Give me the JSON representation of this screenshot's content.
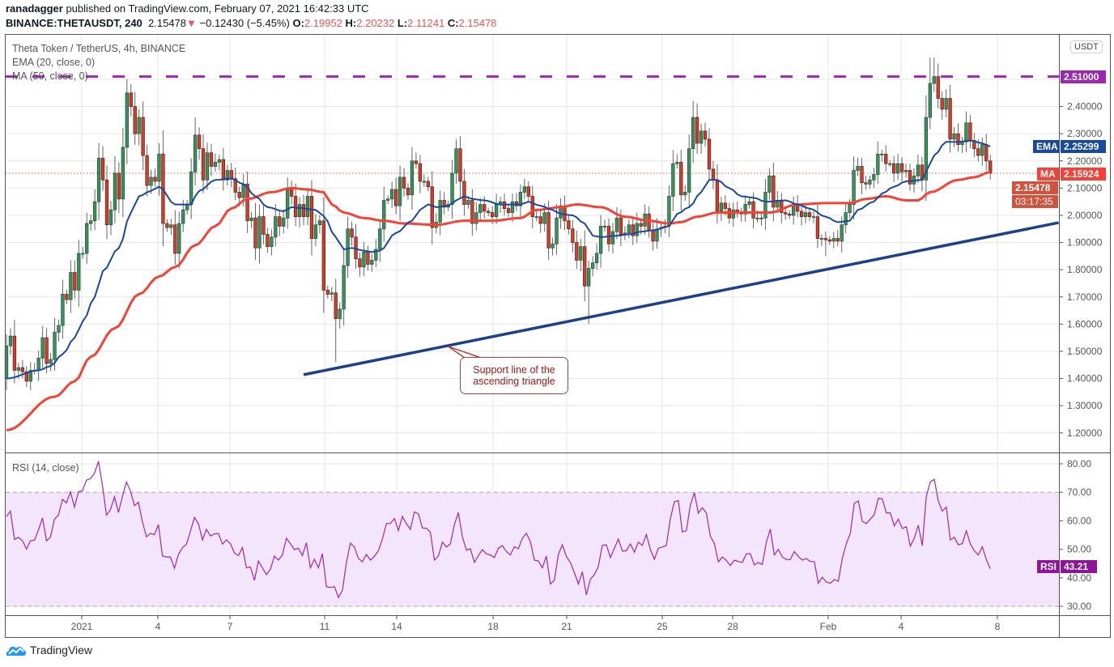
{
  "header": {
    "author": "ranadagger",
    "published_text": "published on TradingView.com, February 07, 2021 16:42:33 UTC",
    "symbol": "BINANCE:THETAUSDT, 240",
    "last": "2.15478",
    "change": "−0.12430 (−5.45%)",
    "o_label": "O:",
    "o": "2.19952",
    "h_label": "H:",
    "h": "2.20232",
    "l_label": "L:",
    "l": "2.11241",
    "c_label": "C:",
    "c": "2.15478",
    "down_arrow": "▼"
  },
  "legend": {
    "title": "Theta Token / TetherUS, 4h, BINANCE",
    "ema": "EMA (20, close, 0)",
    "ma": "MA (50, close, 0)"
  },
  "price_axis": {
    "currency": "USDT",
    "ticks": [
      "2.40000",
      "2.30000",
      "2.20000",
      "2.10000",
      "2.00000",
      "1.90000",
      "1.80000",
      "1.70000",
      "1.60000",
      "1.50000",
      "1.40000",
      "1.30000",
      "1.20000"
    ]
  },
  "badges": {
    "resistance": "2.51000",
    "ema_label": "EMA",
    "ema_value": "2.25299",
    "ma_label": "MA",
    "ma_value": "2.15924",
    "last_price": "2.15478",
    "countdown": "03:17:35",
    "rsi_label": "RSI",
    "rsi_value": "43.21"
  },
  "rsi_panel": {
    "title": "RSI (14, close)",
    "ticks": [
      "80.00",
      "70.00",
      "60.00",
      "50.00",
      "40.00",
      "30.00"
    ]
  },
  "time_axis": [
    "2021",
    "4",
    "7",
    "11",
    "14",
    "18",
    "21",
    "25",
    "28",
    "Feb",
    "4",
    "8"
  ],
  "annotation": {
    "line1": "Support line of the",
    "line2": "ascending triangle"
  },
  "branding": "TradingView",
  "colors": {
    "up": "#3d8f5e",
    "down": "#cf3f2e",
    "ema": "#1848a0",
    "ma": "#f44336",
    "resistance": "#9c27b0",
    "support": "#1e3f8a",
    "rsi": "#9c27b0",
    "rsi_band": "#f3e5fc"
  },
  "chart_data": {
    "type": "candlestick",
    "symbol": "THETAUSDT",
    "interval": "4h",
    "ylim": [
      1.15,
      2.6
    ],
    "rsi_ylim": [
      25,
      83
    ],
    "grid": true,
    "first_open": 1.4,
    "closes": [
      1.52,
      1.556,
      1.43,
      1.44,
      1.425,
      1.39,
      1.43,
      1.43,
      1.475,
      1.55,
      1.455,
      1.47,
      1.57,
      1.595,
      1.71,
      1.69,
      1.79,
      1.725,
      1.86,
      1.86,
      1.97,
      1.98,
      2.05,
      2.21,
      2.13,
      1.965,
      2.02,
      2.155,
      2.06,
      2.25,
      2.45,
      2.4,
      2.3,
      2.36,
      2.22,
      2.11,
      2.14,
      2.125,
      2.225,
      1.97,
      1.955,
      1.965,
      1.86,
      1.97,
      2.02,
      2.04,
      2.16,
      2.295,
      2.245,
      2.13,
      2.23,
      2.18,
      2.195,
      2.205,
      2.13,
      2.165,
      2.135,
      2.085,
      2.065,
      2.115,
      1.98,
      1.99,
      1.88,
      1.995,
      1.93,
      1.885,
      1.92,
      1.995,
      1.96,
      1.99,
      2.1,
      2.07,
      1.995,
      2.04,
      1.995,
      2.07,
      1.915,
      1.965,
      1.98,
      1.725,
      1.71,
      1.715,
      1.62,
      1.655,
      1.815,
      1.95,
      1.92,
      1.84,
      1.81,
      1.865,
      1.82,
      1.835,
      1.875,
      1.95,
      2.055,
      2.06,
      2.095,
      2.035,
      2.14,
      2.1,
      2.075,
      2.2,
      2.19,
      2.125,
      2.125,
      2.105,
      1.955,
      1.975,
      2.055,
      2.03,
      2.04,
      2.155,
      2.245,
      2.125,
      2.04,
      2.055,
      1.97,
      2.01,
      2.04,
      2.015,
      2.01,
      1.995,
      2.04,
      2.05,
      2.025,
      2.01,
      2.05,
      2.035,
      2.085,
      2.105,
      2.07,
      1.995,
      1.995,
      1.97,
      2.01,
      1.88,
      1.895,
      1.99,
      2.035,
      1.98,
      1.95,
      1.9,
      1.835,
      1.885,
      1.74,
      1.805,
      1.825,
      1.86,
      1.96,
      1.96,
      1.895,
      1.94,
      1.99,
      1.93,
      1.935,
      1.965,
      1.925,
      1.97,
      1.96,
      2.005,
      1.945,
      1.905,
      1.95,
      1.955,
      1.96,
      2.07,
      2.19,
      2.195,
      2.075,
      2.085,
      2.245,
      2.36,
      2.265,
      2.31,
      2.28,
      2.17,
      2.13,
      2.015,
      2.045,
      2.025,
      1.99,
      2.02,
      2.01,
      2.005,
      2.04,
      2.05,
      1.99,
      1.99,
      1.99,
      2.085,
      2.145,
      2.03,
      2.055,
      2.01,
      2.005,
      2.0,
      2.04,
      2.015,
      1.995,
      2.01,
      1.995,
      1.995,
      1.915,
      1.915,
      1.91,
      1.905,
      1.915,
      1.905,
      1.965,
      2.01,
      2.04,
      2.165,
      2.18,
      2.12,
      2.115,
      2.13,
      2.15,
      2.225,
      2.225,
      2.19,
      2.19,
      2.155,
      2.19,
      2.16,
      2.165,
      2.115,
      2.145,
      2.185,
      2.13,
      2.36,
      2.485,
      2.51,
      2.43,
      2.39,
      2.43,
      2.28,
      2.3,
      2.26,
      2.27,
      2.34,
      2.275,
      2.245,
      2.22,
      2.26,
      2.2,
      2.15478
    ],
    "notable_wicks": [
      {
        "bar": 30,
        "high": 2.5
      },
      {
        "bar": 47,
        "high": 2.36
      },
      {
        "bar": 82,
        "low": 1.46
      },
      {
        "bar": 112,
        "high": 2.28
      },
      {
        "bar": 145,
        "low": 1.6
      },
      {
        "bar": 171,
        "high": 2.42
      },
      {
        "bar": 204,
        "low": 1.85
      },
      {
        "bar": 230,
        "high": 2.58
      },
      {
        "bar": 231,
        "high": 2.58
      }
    ],
    "ema20": [
      [
        0,
        1.4
      ],
      [
        8,
        1.43
      ],
      [
        11,
        1.446
      ],
      [
        14,
        1.49
      ],
      [
        17,
        1.55
      ],
      [
        19,
        1.61
      ],
      [
        22,
        1.7
      ],
      [
        24,
        1.795
      ],
      [
        28,
        1.88
      ],
      [
        31,
        2.01
      ],
      [
        33,
        2.07
      ],
      [
        36,
        2.09
      ],
      [
        38,
        2.105
      ],
      [
        42,
        2.04
      ],
      [
        46,
        2.04
      ],
      [
        47,
        2.07
      ],
      [
        48,
        2.09
      ],
      [
        52,
        2.13
      ],
      [
        56,
        2.135
      ],
      [
        59,
        2.115
      ],
      [
        62,
        2.07
      ],
      [
        65,
        2.03
      ],
      [
        69,
        2.015
      ],
      [
        71,
        2.03
      ],
      [
        73,
        2.027
      ],
      [
        77,
        2.02
      ],
      [
        79,
        1.997
      ],
      [
        82,
        1.92
      ],
      [
        84,
        1.875
      ],
      [
        86,
        1.88
      ],
      [
        89,
        1.87
      ],
      [
        91,
        1.865
      ],
      [
        93,
        1.87
      ],
      [
        97,
        1.935
      ],
      [
        101,
        1.98
      ],
      [
        103,
        2.02
      ],
      [
        105,
        2.04
      ],
      [
        107,
        2.03
      ],
      [
        110,
        2.035
      ],
      [
        112,
        2.055
      ],
      [
        114,
        2.07
      ],
      [
        116,
        2.06
      ],
      [
        119,
        2.055
      ],
      [
        123,
        2.04
      ],
      [
        128,
        2.04
      ],
      [
        130,
        2.05
      ],
      [
        133,
        2.035
      ],
      [
        136,
        2.02
      ],
      [
        138,
        2.005
      ],
      [
        141,
        2.0
      ],
      [
        144,
        1.97
      ],
      [
        146,
        1.925
      ],
      [
        148,
        1.92
      ],
      [
        152,
        1.925
      ],
      [
        155,
        1.93
      ],
      [
        158,
        1.94
      ],
      [
        161,
        1.945
      ],
      [
        165,
        1.96
      ],
      [
        167,
        2.005
      ],
      [
        170,
        2.03
      ],
      [
        173,
        2.085
      ],
      [
        175,
        2.13
      ],
      [
        177,
        2.13
      ],
      [
        180,
        2.1
      ],
      [
        183,
        2.07
      ],
      [
        186,
        2.065
      ],
      [
        189,
        2.05
      ],
      [
        194,
        2.055
      ],
      [
        197,
        2.04
      ],
      [
        200,
        2.025
      ],
      [
        204,
        1.995
      ],
      [
        207,
        1.975
      ],
      [
        210,
        1.98
      ],
      [
        212,
        2.02
      ],
      [
        216,
        2.05
      ],
      [
        218,
        2.08
      ],
      [
        221,
        2.105
      ],
      [
        224,
        2.125
      ],
      [
        228,
        2.13
      ],
      [
        229,
        2.16
      ],
      [
        231,
        2.22
      ],
      [
        234,
        2.27
      ],
      [
        237,
        2.27
      ],
      [
        240,
        2.275
      ],
      [
        243,
        2.265
      ],
      [
        245,
        2.253
      ]
    ],
    "ma50": [
      [
        0,
        1.21
      ],
      [
        12,
        1.333
      ],
      [
        17,
        1.39
      ],
      [
        21,
        1.48
      ],
      [
        27,
        1.585
      ],
      [
        33,
        1.71
      ],
      [
        38,
        1.775
      ],
      [
        42,
        1.81
      ],
      [
        47,
        1.89
      ],
      [
        52,
        1.96
      ],
      [
        56,
        2.025
      ],
      [
        60,
        2.06
      ],
      [
        66,
        2.085
      ],
      [
        71,
        2.1
      ],
      [
        75,
        2.095
      ],
      [
        79,
        2.085
      ],
      [
        81,
        2.04
      ],
      [
        84,
        2.01
      ],
      [
        89,
        1.99
      ],
      [
        94,
        1.98
      ],
      [
        99,
        1.97
      ],
      [
        107,
        1.965
      ],
      [
        114,
        1.98
      ],
      [
        121,
        1.98
      ],
      [
        128,
        1.99
      ],
      [
        132,
        2.02
      ],
      [
        138,
        2.03
      ],
      [
        142,
        2.04
      ],
      [
        148,
        2.03
      ],
      [
        154,
        1.995
      ],
      [
        160,
        1.98
      ],
      [
        165,
        1.97
      ],
      [
        168,
        1.975
      ],
      [
        172,
        1.995
      ],
      [
        177,
        2.01
      ],
      [
        190,
        2.01
      ],
      [
        197,
        2.04
      ],
      [
        204,
        2.045
      ],
      [
        210,
        2.045
      ],
      [
        214,
        2.06
      ],
      [
        219,
        2.07
      ],
      [
        224,
        2.055
      ],
      [
        227,
        2.055
      ],
      [
        230,
        2.085
      ],
      [
        237,
        2.13
      ],
      [
        241,
        2.14
      ],
      [
        245,
        2.159
      ]
    ],
    "resistance_level": 2.51,
    "support_line": {
      "from": [
        74,
        1.414
      ],
      "to": [
        262,
        1.973
      ]
    },
    "annotation_target": [
      110,
      1.518
    ],
    "rsi": [
      61.5,
      63.4,
      53.5,
      54.2,
      53,
      50.1,
      53,
      53.2,
      56.8,
      61,
      53,
      54.2,
      60.6,
      62,
      67.5,
      66.3,
      70.2,
      64.8,
      70.2,
      70.5,
      74.3,
      74.8,
      76.7,
      80.9,
      72.4,
      62,
      63.9,
      68.4,
      62.9,
      68.6,
      73.6,
      70.5,
      65.3,
      66.5,
      59.6,
      54.4,
      55.6,
      55.1,
      58.7,
      47.6,
      47.3,
      47.3,
      43.3,
      48.2,
      50.6,
      51.8,
      56.3,
      61.2,
      59,
      53.3,
      57,
      54.7,
      55.4,
      55.6,
      51.8,
      53.3,
      52,
      48.7,
      47.8,
      50.6,
      43.5,
      43.8,
      39.1,
      45.9,
      43.5,
      41.1,
      43,
      47.6,
      46.2,
      48,
      53.9,
      52,
      49.9,
      50.4,
      47.8,
      52.3,
      43.5,
      46.5,
      43.5,
      48.5,
      36.9,
      36.6,
      36.9,
      33.1,
      35.5,
      45.4,
      52.2,
      50.8,
      46.8,
      45.6,
      48.2,
      46.2,
      47.5,
      49.5,
      53.6,
      59,
      59.1,
      60.8,
      56.6,
      61.5,
      59,
      57,
      63.1,
      62.5,
      57.5,
      57.4,
      56,
      46.2,
      47.6,
      52.5,
      50.8,
      51.9,
      58.7,
      62.9,
      54.4,
      49.7,
      50.2,
      45.4,
      47.8,
      49.9,
      48.4,
      48,
      47.1,
      50.4,
      51.3,
      49.2,
      48,
      50.9,
      50.2,
      53.9,
      55.6,
      52.7,
      46.2,
      45.9,
      43.5,
      47.6,
      37.8,
      39.2,
      48.2,
      51.6,
      47.5,
      45.4,
      41.8,
      37.8,
      42.1,
      34,
      39.5,
      41.1,
      44,
      51.4,
      51.6,
      47.1,
      50.4,
      53.6,
      49.4,
      49.5,
      51.9,
      49,
      52.5,
      51.4,
      55.2,
      50,
      46.5,
      50.4,
      50.8,
      51.4,
      60.8,
      66.7,
      67.1,
      56.1,
      56.5,
      65.5,
      69.9,
      62.7,
      64.6,
      62.7,
      54.6,
      52,
      45.6,
      47.3,
      46.1,
      44.3,
      46.2,
      45.7,
      45.4,
      48.4,
      48.5,
      44.5,
      45.4,
      44.7,
      52.5,
      57.1,
      48,
      50,
      47.3,
      46.4,
      46.4,
      49.2,
      47.5,
      46.2,
      46.8,
      45.7,
      45.7,
      38.1,
      40.2,
      38.5,
      38.1,
      39.4,
      38.8,
      46.8,
      52,
      55.6,
      66.1,
      67,
      59.8,
      59,
      60.6,
      62.2,
      67.9,
      67.7,
      62.7,
      62.8,
      58.2,
      60.6,
      57.3,
      57.9,
      51.1,
      53.9,
      58.4,
      51.3,
      68.6,
      73.6,
      74.6,
      66.9,
      63.4,
      64.8,
      53.3,
      54.2,
      51.6,
      52,
      56.5,
      51.9,
      49.5,
      48,
      50.9,
      46.4,
      43.21
    ],
    "rsi_bands": [
      70,
      30
    ]
  }
}
